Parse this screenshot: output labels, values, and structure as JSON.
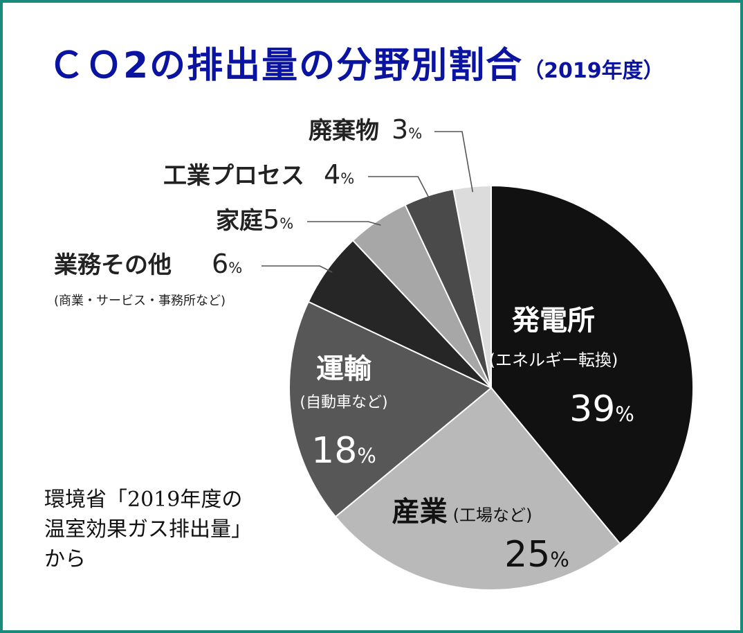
{
  "title": "ＣＯ2の排出量の分野別割合",
  "subtitle": "（2019年度）",
  "source_note": "環境省「2019年度の\n温室効果ガス排出量」\nから",
  "colors": {
    "frame": "#1a8a7a",
    "title": "#0a14a0"
  },
  "chart_data": {
    "type": "pie",
    "title": "ＣＯ2の排出量の分野別割合",
    "subtitle": "（2019年度）",
    "unit": "%",
    "slices": [
      {
        "label": "発電所",
        "sublabel": "(エネルギー転換)",
        "value": 39,
        "color": "#111111"
      },
      {
        "label": "産業",
        "sublabel": "(工場など)",
        "value": 25,
        "color": "#b9b9b9"
      },
      {
        "label": "運輸",
        "sublabel": "(自動車など)",
        "value": 18,
        "color": "#575757"
      },
      {
        "label": "業務その他",
        "sublabel": "(商業・サービス・事務所など)",
        "value": 6,
        "color": "#262626"
      },
      {
        "label": "家庭",
        "sublabel": "",
        "value": 5,
        "color": "#a7a7a7"
      },
      {
        "label": "工業プロセス",
        "sublabel": "",
        "value": 4,
        "color": "#4a4a4a"
      },
      {
        "label": "廃棄物",
        "sublabel": "",
        "value": 3,
        "color": "#dcdcdc"
      }
    ]
  }
}
